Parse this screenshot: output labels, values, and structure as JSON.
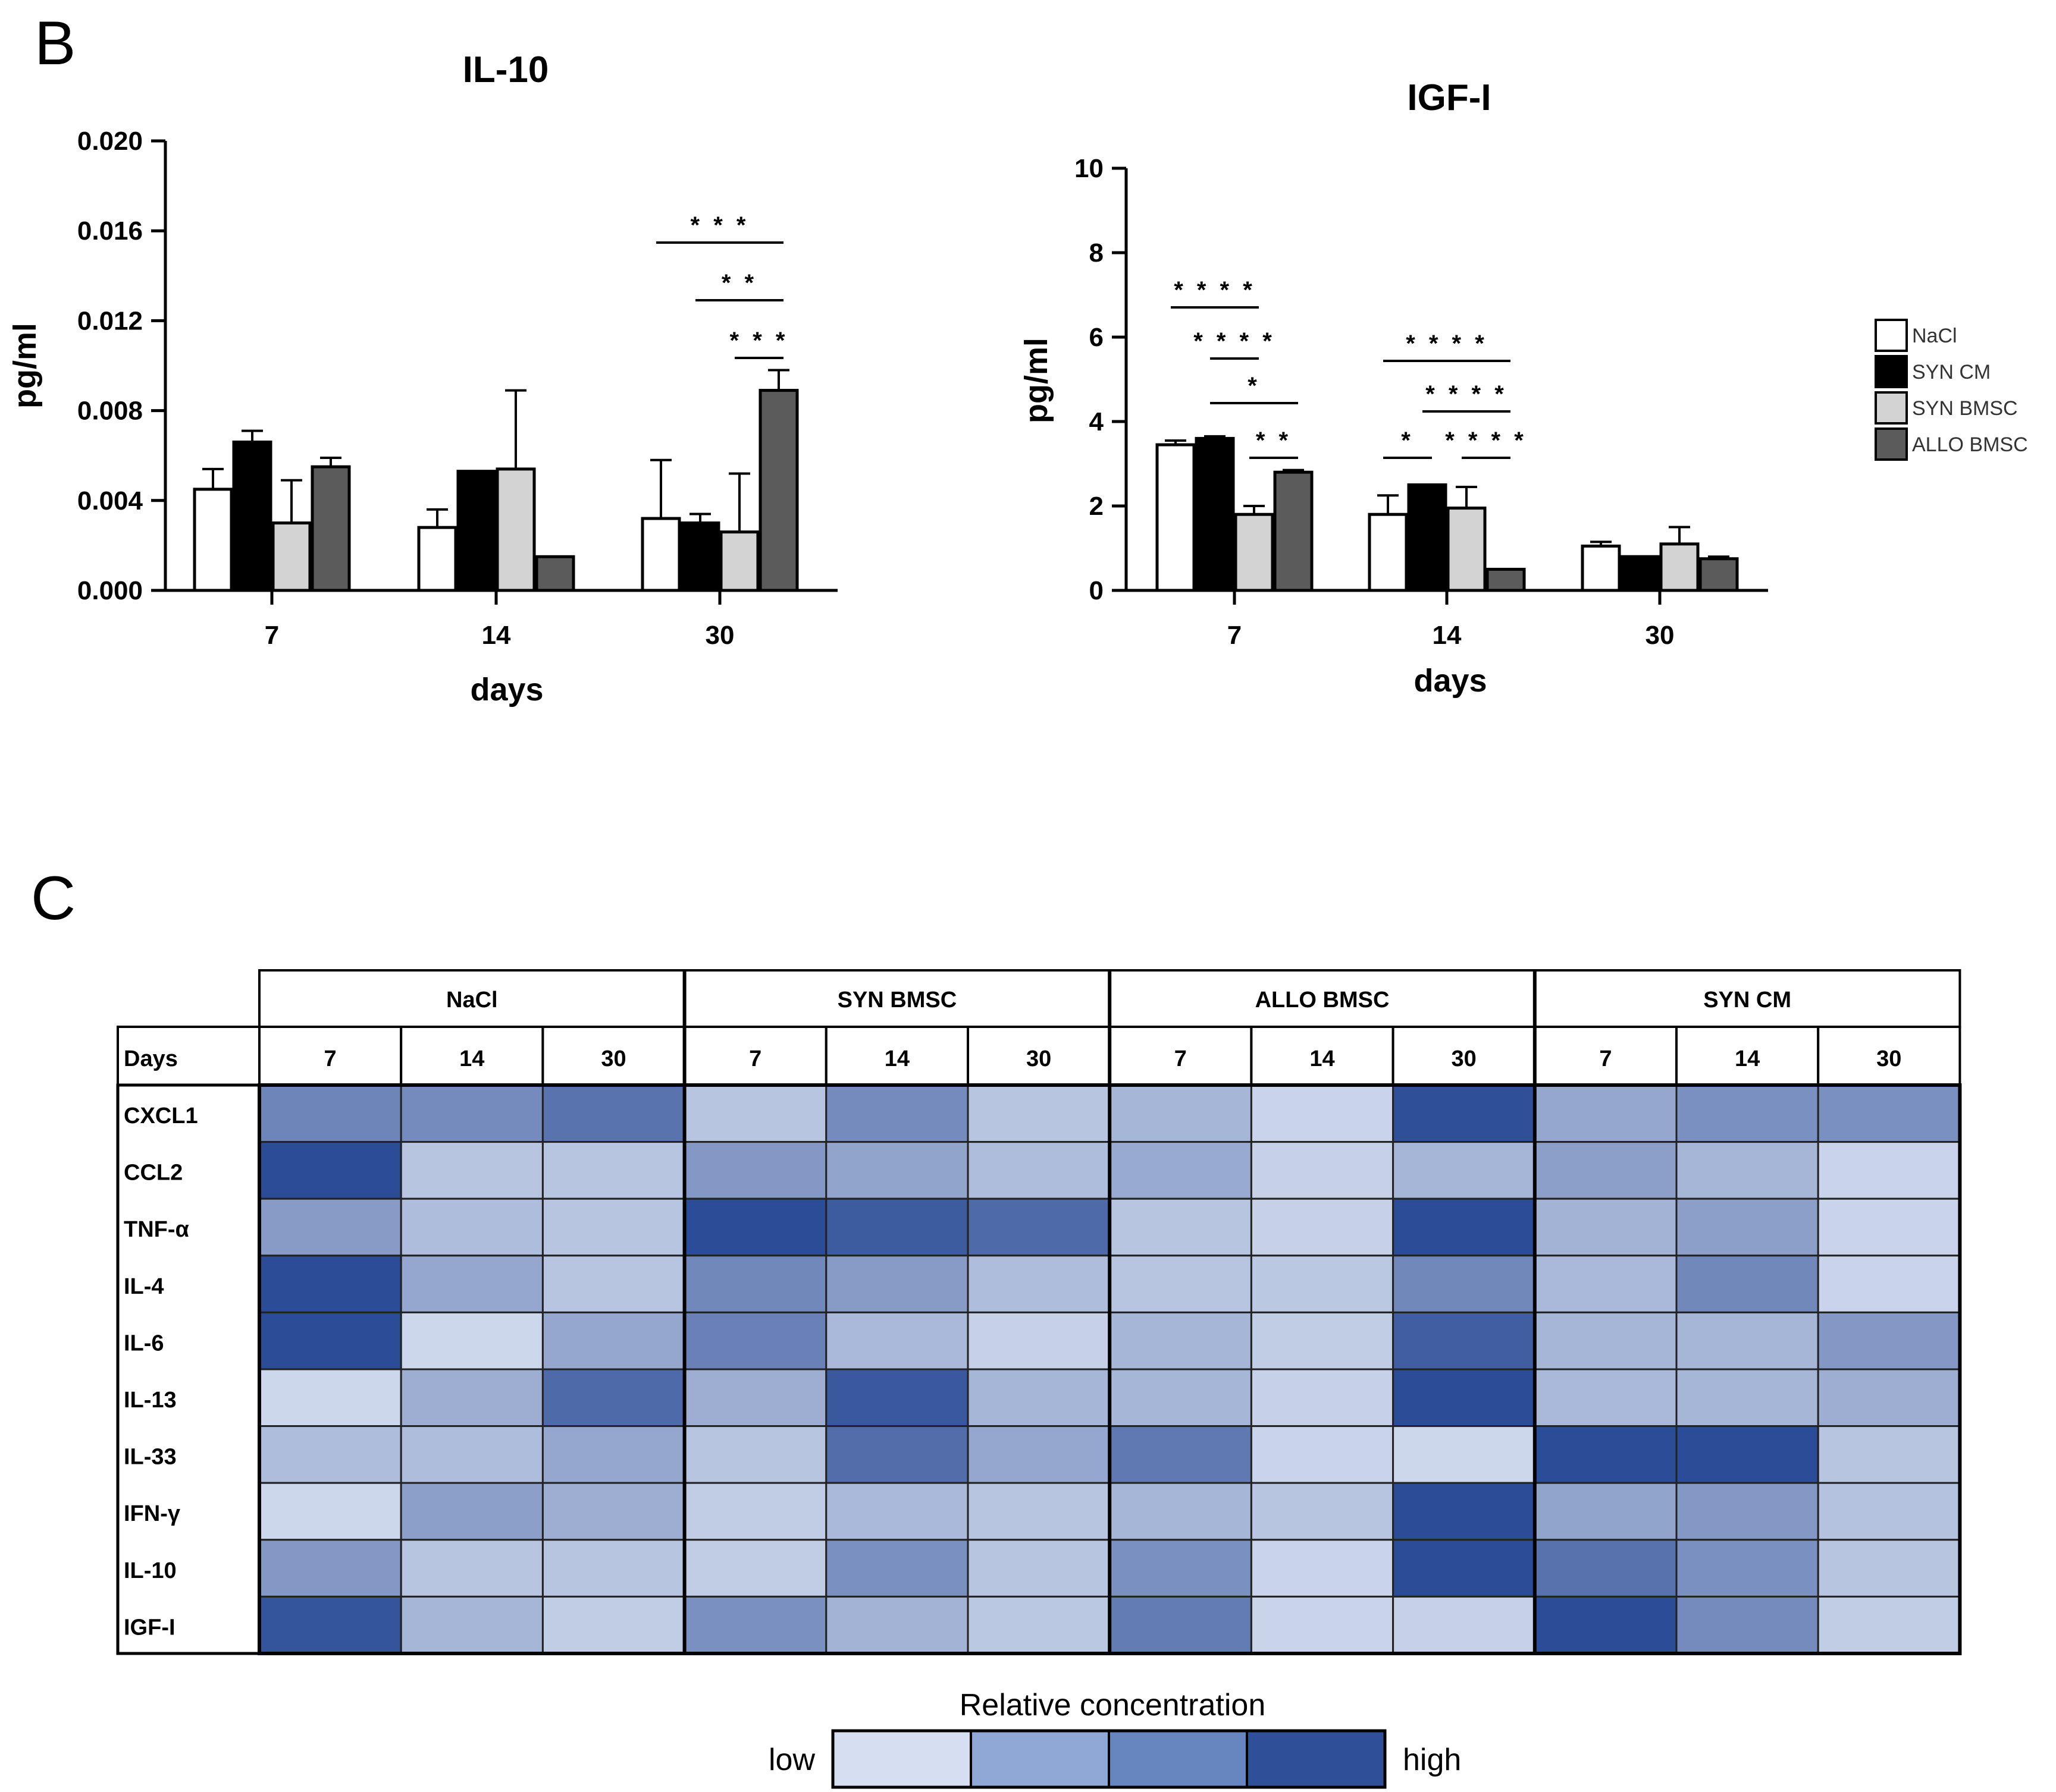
{
  "panel_b_letter": "B",
  "panel_c_letter": "C",
  "chart_data": [
    {
      "type": "bar",
      "title": "IL-10",
      "xlabel": "days",
      "ylabel": "pg/ml",
      "ylim": [
        0,
        0.02
      ],
      "yticks": [
        "0.000",
        "0.004",
        "0.008",
        "0.012",
        "0.016",
        "0.020"
      ],
      "ytick_values": [
        0,
        0.004,
        0.008,
        0.012,
        0.016,
        0.02
      ],
      "categories": [
        "7",
        "14",
        "30"
      ],
      "series": [
        {
          "name": "NaCl",
          "color": "#ffffff",
          "values": [
            0.0045,
            0.0028,
            0.0032
          ],
          "errors": [
            0.0009,
            0.0008,
            0.0026
          ]
        },
        {
          "name": "SYN CM",
          "color": "#000000",
          "values": [
            0.0066,
            0.0053,
            0.003
          ],
          "errors": [
            0.0005,
            0.0,
            0.0004
          ]
        },
        {
          "name": "SYN BMSC",
          "color": "#d3d3d3",
          "values": [
            0.003,
            0.0054,
            0.0026
          ],
          "errors": [
            0.0019,
            0.0035,
            0.0026
          ]
        },
        {
          "name": "ALLO BMSC",
          "color": "#5b5b5b",
          "values": [
            0.0055,
            0.0015,
            0.0089
          ],
          "errors": [
            0.0004,
            0.0,
            0.0009
          ]
        }
      ],
      "significance": [
        {
          "group": "30",
          "from": "NaCl",
          "to": "ALLO BMSC",
          "label": "***"
        },
        {
          "group": "30",
          "from": "SYN CM",
          "to": "ALLO BMSC",
          "label": "**"
        },
        {
          "group": "30",
          "from": "SYN BMSC",
          "to": "ALLO BMSC",
          "label": "***"
        }
      ]
    },
    {
      "type": "bar",
      "title": "IGF-I",
      "xlabel": "days",
      "ylabel": "pg/ml",
      "ylim": [
        0,
        10
      ],
      "yticks": [
        "0",
        "2",
        "4",
        "6",
        "8",
        "10"
      ],
      "ytick_values": [
        0,
        2,
        4,
        6,
        8,
        10
      ],
      "categories": [
        "7",
        "14",
        "30"
      ],
      "series": [
        {
          "name": "NaCl",
          "color": "#ffffff",
          "values": [
            3.45,
            1.8,
            1.05
          ],
          "errors": [
            0.1,
            0.45,
            0.1
          ]
        },
        {
          "name": "SYN CM",
          "color": "#000000",
          "values": [
            3.6,
            2.5,
            0.8
          ],
          "errors": [
            0.05,
            0.0,
            0.0
          ]
        },
        {
          "name": "SYN BMSC",
          "color": "#d3d3d3",
          "values": [
            1.8,
            1.95,
            1.1
          ],
          "errors": [
            0.2,
            0.5,
            0.4
          ]
        },
        {
          "name": "ALLO BMSC",
          "color": "#5b5b5b",
          "values": [
            2.8,
            0.5,
            0.75
          ],
          "errors": [
            0.05,
            0.0,
            0.05
          ]
        }
      ],
      "significance": [
        {
          "group": "7",
          "from": "NaCl",
          "to": "SYN BMSC",
          "label": "****"
        },
        {
          "group": "7",
          "from": "SYN CM",
          "to": "SYN BMSC",
          "label": "****"
        },
        {
          "group": "7",
          "from": "SYN CM",
          "to": "ALLO BMSC",
          "label": "*"
        },
        {
          "group": "7",
          "from": "SYN BMSC",
          "to": "ALLO BMSC",
          "label": "**"
        },
        {
          "group": "14",
          "from": "NaCl",
          "to": "ALLO BMSC",
          "label": "****"
        },
        {
          "group": "14",
          "from": "SYN CM",
          "to": "ALLO BMSC",
          "label": "****"
        },
        {
          "group": "14",
          "from": "NaCl",
          "to": "SYN CM",
          "label": "*"
        },
        {
          "group": "14",
          "from": "SYN BMSC",
          "to": "ALLO BMSC",
          "label": "****"
        }
      ]
    },
    {
      "type": "heatmap",
      "row_header": "Days",
      "groups": [
        "NaCl",
        "SYN BMSC",
        "ALLO BMSC",
        "SYN CM"
      ],
      "days": [
        "7",
        "14",
        "30"
      ],
      "rows": [
        "CXCL1",
        "CCL2",
        "TNF-α",
        "IL-4",
        "IL-6",
        "IL-13",
        "IL-33",
        "IFN-γ",
        "IL-10",
        "IGF-I"
      ],
      "levels": [
        [
          0.62,
          0.58,
          0.74,
          0.2,
          0.58,
          0.2,
          0.3,
          0.1,
          0.98,
          0.4,
          0.55,
          0.55
        ],
        [
          1.0,
          0.2,
          0.2,
          0.5,
          0.42,
          0.25,
          0.38,
          0.12,
          0.3,
          0.45,
          0.3,
          0.1
        ],
        [
          0.48,
          0.25,
          0.2,
          1.0,
          0.9,
          0.8,
          0.2,
          0.12,
          1.0,
          0.32,
          0.45,
          0.1
        ],
        [
          1.0,
          0.4,
          0.2,
          0.6,
          0.48,
          0.25,
          0.2,
          0.18,
          0.6,
          0.28,
          0.6,
          0.1
        ],
        [
          1.0,
          0.08,
          0.4,
          0.65,
          0.28,
          0.12,
          0.3,
          0.15,
          0.88,
          0.3,
          0.3,
          0.5
        ],
        [
          0.08,
          0.35,
          0.8,
          0.35,
          0.92,
          0.3,
          0.3,
          0.12,
          1.0,
          0.28,
          0.3,
          0.35
        ],
        [
          0.25,
          0.25,
          0.4,
          0.2,
          0.78,
          0.4,
          0.7,
          0.1,
          0.08,
          1.0,
          1.0,
          0.2
        ],
        [
          0.08,
          0.45,
          0.35,
          0.15,
          0.28,
          0.2,
          0.3,
          0.2,
          1.0,
          0.42,
          0.5,
          0.22
        ],
        [
          0.5,
          0.2,
          0.2,
          0.15,
          0.55,
          0.2,
          0.55,
          0.1,
          1.0,
          0.75,
          0.55,
          0.2
        ],
        [
          0.95,
          0.3,
          0.15,
          0.55,
          0.32,
          0.18,
          0.68,
          0.1,
          0.12,
          1.0,
          0.58,
          0.15
        ]
      ],
      "color_low": "#dbe3f3",
      "color_high": "#2b4c96",
      "scale_title": "Relative concentration",
      "scale_low": "low",
      "scale_high": "high",
      "scale_colors": [
        "#d6dff2",
        "#8fa8d6",
        "#6785bf",
        "#2f4f98"
      ]
    }
  ]
}
